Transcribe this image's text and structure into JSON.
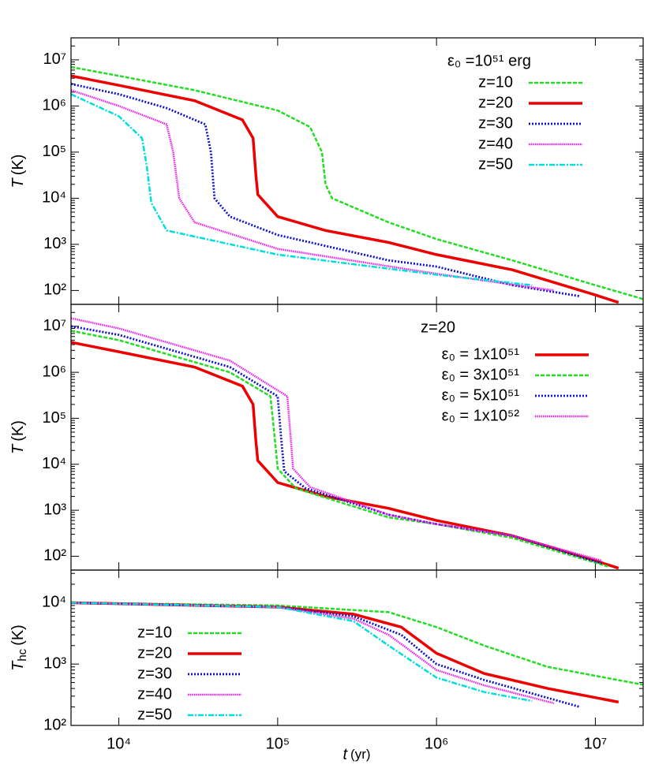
{
  "chart_data": [
    {
      "type": "line",
      "log_x": true,
      "log_y": true,
      "ylabel": {
        "symbol": "T",
        "unit": "(K)"
      },
      "legend": "upper right",
      "legend_title": "ε₀ =10⁵¹ erg",
      "xlim": [
        5000,
        20000000
      ],
      "ylim": [
        50,
        30000000
      ],
      "yticks": [
        {
          "value": 100,
          "label": "10²"
        },
        {
          "value": 1000,
          "label": "10³"
        },
        {
          "value": 10000,
          "label": "10⁴"
        },
        {
          "value": 100000,
          "label": "10⁵"
        },
        {
          "value": 1000000,
          "label": "10⁶"
        },
        {
          "value": 10000000,
          "label": "10⁷"
        }
      ],
      "series": [
        {
          "name": "z=10",
          "color": "#22dd22",
          "style": "dashed",
          "x": [
            5000,
            10000,
            30000,
            100000,
            160000,
            190000,
            200000,
            220000,
            500000,
            1000000,
            3000000,
            10000000,
            20000000
          ],
          "values": [
            7000000,
            4500000,
            2200000,
            800000,
            350000,
            100000,
            20000,
            10000,
            3000,
            1300,
            450,
            130,
            65
          ]
        },
        {
          "name": "z=20",
          "color": "#ee0000",
          "style": "solid",
          "x": [
            5000,
            10000,
            30000,
            60000,
            70000,
            73000,
            75000,
            100000,
            200000,
            500000,
            1000000,
            3000000,
            10000000,
            14000000
          ],
          "values": [
            4500000,
            2800000,
            1300000,
            500000,
            200000,
            30000,
            12000,
            4000,
            2000,
            1100,
            600,
            280,
            80,
            55
          ]
        },
        {
          "name": "z=30",
          "color": "#1010cc",
          "style": "dotted",
          "x": [
            5000,
            10000,
            20000,
            35000,
            38000,
            40000,
            50000,
            100000,
            500000,
            1000000,
            3000000,
            8000000
          ],
          "values": [
            3000000,
            1800000,
            900000,
            400000,
            100000,
            10000,
            4000,
            1600,
            450,
            330,
            130,
            75
          ]
        },
        {
          "name": "z=40",
          "color": "#ee22ee",
          "style": "fine",
          "x": [
            5000,
            10000,
            20000,
            22000,
            24000,
            30000,
            100000,
            1000000,
            5500000
          ],
          "values": [
            2200000,
            1000000,
            400000,
            100000,
            10000,
            3000,
            800,
            230,
            100
          ]
        },
        {
          "name": "z=50",
          "color": "#00dddd",
          "style": "dashdot",
          "x": [
            5000,
            10000,
            14000,
            15000,
            16000,
            20000,
            100000,
            1000000,
            4000000
          ],
          "values": [
            1800000,
            600000,
            200000,
            50000,
            8000,
            2000,
            600,
            220,
            130
          ]
        }
      ]
    },
    {
      "type": "line",
      "log_x": true,
      "log_y": true,
      "ylabel": {
        "symbol": "T",
        "unit": "(K)"
      },
      "legend": "upper right",
      "legend_title": "z=20",
      "xlim": [
        5000,
        20000000
      ],
      "ylim": [
        50,
        30000000
      ],
      "yticks": [
        {
          "value": 100,
          "label": "10²"
        },
        {
          "value": 1000,
          "label": "10³"
        },
        {
          "value": 10000,
          "label": "10⁴"
        },
        {
          "value": 100000,
          "label": "10⁵"
        },
        {
          "value": 1000000,
          "label": "10⁶"
        },
        {
          "value": 10000000,
          "label": "10⁷"
        }
      ],
      "series": [
        {
          "name": "ε₀ = 1x10⁵¹",
          "color": "#ee0000",
          "style": "solid",
          "x": [
            5000,
            10000,
            30000,
            60000,
            70000,
            73000,
            75000,
            100000,
            200000,
            500000,
            1000000,
            3000000,
            10000000,
            14000000
          ],
          "values": [
            4500000,
            2800000,
            1300000,
            500000,
            200000,
            30000,
            12000,
            4000,
            2000,
            1100,
            600,
            280,
            80,
            55
          ]
        },
        {
          "name": "ε₀ = 3x10⁵¹",
          "color": "#22dd22",
          "style": "dashed",
          "x": [
            5000,
            10000,
            50000,
            90000,
            95000,
            100000,
            130000,
            500000,
            1000000,
            3000000,
            12000000
          ],
          "values": [
            8000000,
            5000000,
            1000000,
            300000,
            50000,
            8000,
            3000,
            700,
            500,
            250,
            60
          ]
        },
        {
          "name": "ε₀ = 5x10⁵¹",
          "color": "#1010cc",
          "style": "dotted",
          "x": [
            5000,
            10000,
            50000,
            100000,
            105000,
            110000,
            150000,
            500000,
            1000000,
            3000000,
            11000000
          ],
          "values": [
            10000000,
            6500000,
            1300000,
            300000,
            40000,
            7000,
            3000,
            800,
            500,
            280,
            70
          ]
        },
        {
          "name": "ε₀ = 1x10⁵²",
          "color": "#ee22ee",
          "style": "fine",
          "x": [
            5000,
            10000,
            50000,
            115000,
            120000,
            125000,
            160000,
            500000,
            1000000,
            3000000,
            11000000
          ],
          "values": [
            15000000,
            9000000,
            1800000,
            300000,
            50000,
            8000,
            3200,
            800,
            500,
            280,
            80
          ]
        }
      ]
    },
    {
      "type": "line",
      "log_x": true,
      "log_y": true,
      "ylabel": {
        "symbol": "T",
        "subscript": "hc",
        "unit": "(K)"
      },
      "xlabel": {
        "symbol": "t",
        "unit": "(yr)"
      },
      "legend": "lower left",
      "xlim": [
        5000,
        20000000
      ],
      "ylim": [
        100,
        34000
      ],
      "xticks": [
        {
          "value": 10000,
          "label": "10⁴"
        },
        {
          "value": 100000,
          "label": "10⁵"
        },
        {
          "value": 1000000,
          "label": "10⁶"
        },
        {
          "value": 10000000,
          "label": "10⁷"
        }
      ],
      "yticks": [
        {
          "value": 100,
          "label": "10²"
        },
        {
          "value": 1000,
          "label": "10³"
        },
        {
          "value": 10000,
          "label": "10⁴"
        }
      ],
      "series": [
        {
          "name": "z=10",
          "color": "#22dd22",
          "style": "dashed",
          "x": [
            5000,
            100000,
            500000,
            1000000,
            2000000,
            5000000,
            20000000
          ],
          "values": [
            10000,
            9000,
            7000,
            4000,
            2000,
            900,
            460
          ]
        },
        {
          "name": "z=20",
          "color": "#ee0000",
          "style": "solid",
          "x": [
            5000,
            100000,
            300000,
            600000,
            1000000,
            2000000,
            5000000,
            14000000
          ],
          "values": [
            10000,
            8500,
            6500,
            4000,
            1500,
            700,
            400,
            240
          ]
        },
        {
          "name": "z=30",
          "color": "#1010cc",
          "style": "dotted",
          "x": [
            5000,
            100000,
            300000,
            600000,
            1000000,
            2000000,
            8000000
          ],
          "values": [
            10000,
            8500,
            6000,
            3000,
            1000,
            550,
            200
          ]
        },
        {
          "name": "z=40",
          "color": "#ee22ee",
          "style": "fine",
          "x": [
            5000,
            100000,
            300000,
            500000,
            1000000,
            2000000,
            5500000
          ],
          "values": [
            10000,
            8500,
            5500,
            3000,
            800,
            450,
            230
          ]
        },
        {
          "name": "z=50",
          "color": "#00dddd",
          "style": "dashdot",
          "x": [
            5000,
            100000,
            300000,
            500000,
            1000000,
            2000000,
            4000000
          ],
          "values": [
            10000,
            8500,
            5000,
            2000,
            600,
            350,
            250
          ]
        }
      ]
    }
  ]
}
